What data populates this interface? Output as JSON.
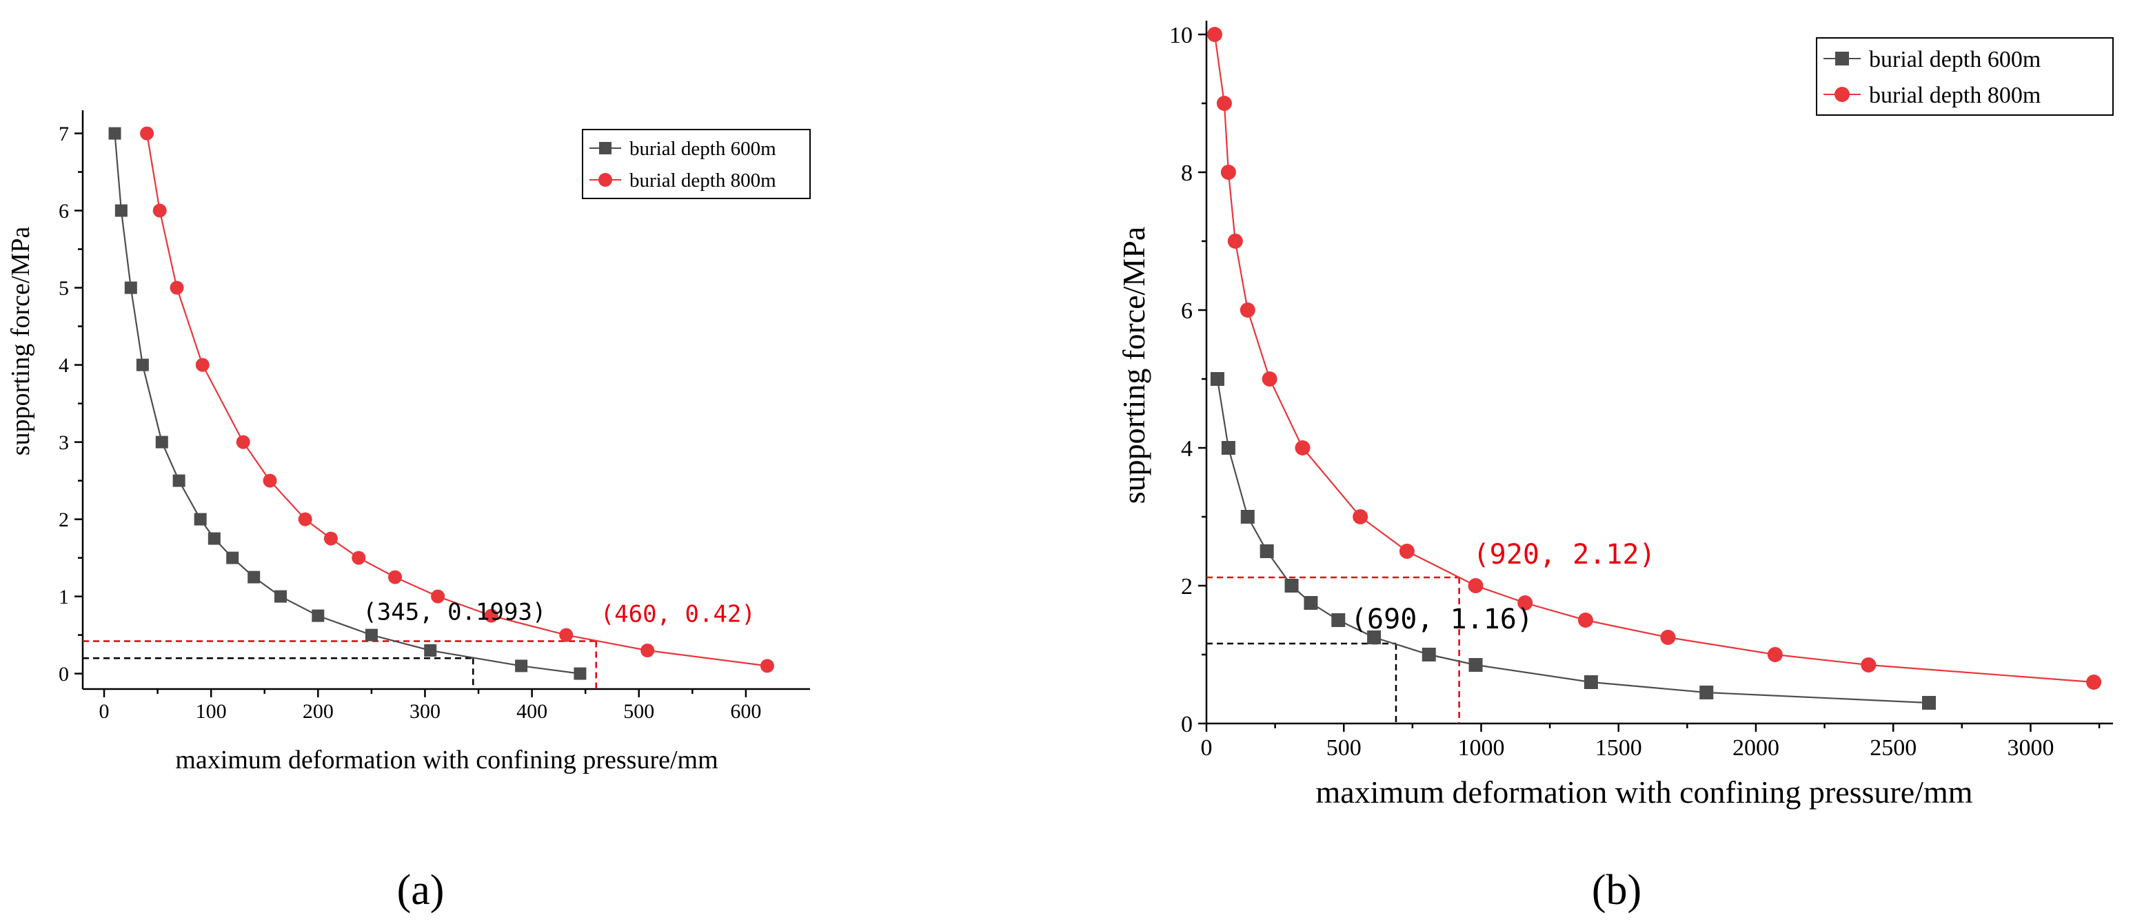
{
  "colors": {
    "series600": "#4d4d4d",
    "series800": "#e8363a",
    "annotBlack": "#000000",
    "annotRed": "#e8000b"
  },
  "chart_data": [
    {
      "id": "a",
      "type": "line",
      "panel_label": "(a)",
      "xlabel": "maximum deformation with confining pressure/mm",
      "ylabel": "supporting force/MPa",
      "xlim": [
        -20,
        660
      ],
      "ylim": [
        -0.2,
        7.3
      ],
      "xticks": [
        0,
        100,
        200,
        300,
        400,
        500,
        600
      ],
      "yticks": [
        0,
        1,
        2,
        3,
        4,
        5,
        6,
        7
      ],
      "xminor": [
        50,
        150,
        250,
        350,
        450,
        550
      ],
      "yminor": [
        0.5,
        1.5,
        2.5,
        3.5,
        4.5,
        5.5,
        6.5
      ],
      "legend_position": "top-right",
      "series": [
        {
          "name": "burial depth 600m",
          "marker": "square",
          "x": [
            10,
            16,
            25,
            36,
            54,
            70,
            90,
            103,
            120,
            140,
            165,
            200,
            250,
            305,
            390,
            445
          ],
          "y": [
            7,
            6,
            5,
            4,
            3,
            2.5,
            2,
            1.75,
            1.5,
            1.25,
            1,
            0.75,
            0.5,
            0.3,
            0.1,
            0
          ]
        },
        {
          "name": "burial depth 800m",
          "marker": "circle",
          "x": [
            40,
            52,
            68,
            92,
            130,
            155,
            188,
            212,
            238,
            272,
            312,
            362,
            432,
            508,
            620
          ],
          "y": [
            7,
            6,
            5,
            4,
            3,
            2.5,
            2,
            1.75,
            1.5,
            1.25,
            1,
            0.75,
            0.5,
            0.3,
            0.1
          ]
        }
      ],
      "annotations": [
        {
          "text": "(345, 0.1993)",
          "x": 345,
          "y": 0.1993,
          "color": "black"
        },
        {
          "text": "(460, 0.42)",
          "x": 460,
          "y": 0.42,
          "color": "red"
        }
      ]
    },
    {
      "id": "b",
      "type": "line",
      "panel_label": "(b)",
      "xlabel": "maximum deformation with confining pressure/mm",
      "ylabel": "supporting force/MPa",
      "xlim": [
        0,
        3300
      ],
      "ylim": [
        0,
        10.2
      ],
      "xticks": [
        0,
        500,
        1000,
        1500,
        2000,
        2500,
        3000
      ],
      "yticks": [
        0,
        2,
        4,
        6,
        8,
        10
      ],
      "xminor": [
        250,
        750,
        1250,
        1750,
        2250,
        2750,
        3250
      ],
      "yminor": [
        1,
        3,
        5,
        7,
        9
      ],
      "legend_position": "top-right",
      "series": [
        {
          "name": "burial depth 600m",
          "marker": "square",
          "x": [
            40,
            80,
            150,
            220,
            310,
            380,
            480,
            610,
            810,
            980,
            1400,
            1820,
            2630
          ],
          "y": [
            5,
            4,
            3,
            2.5,
            2,
            1.75,
            1.5,
            1.25,
            1,
            0.85,
            0.6,
            0.45,
            0.3
          ]
        },
        {
          "name": "burial depth 800m",
          "marker": "circle",
          "x": [
            30,
            65,
            80,
            105,
            150,
            230,
            350,
            560,
            730,
            980,
            1160,
            1380,
            1680,
            2070,
            2410,
            3230
          ],
          "y": [
            10,
            9,
            8,
            7,
            6,
            5,
            4,
            3,
            2.5,
            2,
            1.75,
            1.5,
            1.25,
            1,
            0.85,
            0.6
          ]
        }
      ],
      "annotations": [
        {
          "text": "(690, 1.16)",
          "x": 690,
          "y": 1.16,
          "color": "black"
        },
        {
          "text": "(920, 2.12)",
          "x": 920,
          "y": 2.12,
          "color": "red"
        }
      ]
    }
  ]
}
